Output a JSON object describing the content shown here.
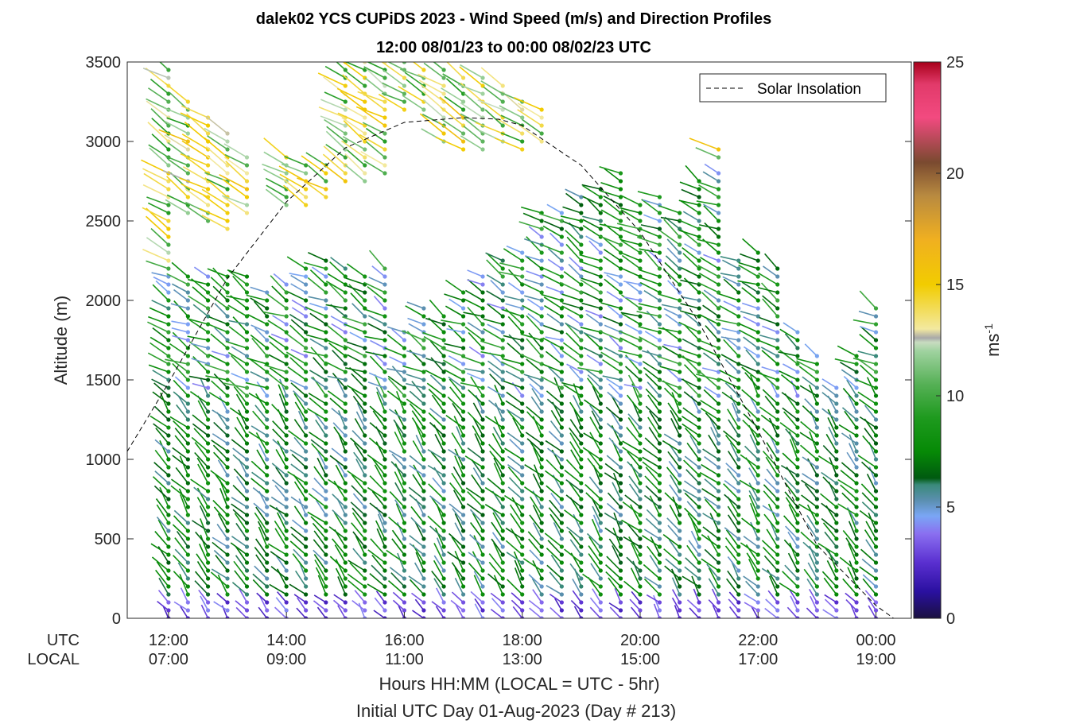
{
  "chart_data": {
    "type": "scatter",
    "title_line1": "dalek02 YCS CUPiDS 2023 - Wind Speed (m/s) and Direction Profiles",
    "title_line2": "12:00 08/01/23 to 00:00 08/02/23  UTC",
    "ylabel": "Altitude (m)",
    "xlabel": "Hours HH:MM  (LOCAL = UTC - 5hr)",
    "xlabel_sub": "Initial UTC Day 01-Aug-2023 (Day # 213)",
    "ylim": [
      0,
      3500
    ],
    "y_ticks": [
      "0",
      "500",
      "1000",
      "1500",
      "2000",
      "2500",
      "3000",
      "3500"
    ],
    "x_row_labels": {
      "utc": "UTC",
      "local": "LOCAL"
    },
    "x_ticks_utc": [
      "12:00",
      "14:00",
      "16:00",
      "18:00",
      "20:00",
      "22:00",
      "00:00"
    ],
    "x_ticks_local": [
      "07:00",
      "09:00",
      "11:00",
      "13:00",
      "15:00",
      "17:00",
      "19:00"
    ],
    "x_tick_hours": [
      12,
      14,
      16,
      18,
      20,
      22,
      24
    ],
    "xlim_hours": [
      11.3,
      24.6
    ],
    "legend": {
      "label": "Solar Insolation",
      "placement": "top-right"
    },
    "colorbar": {
      "label": "ms",
      "label_superscript": "-1",
      "range": [
        0,
        25
      ],
      "ticks": [
        "0",
        "5",
        "10",
        "15",
        "20",
        "25"
      ],
      "stops": [
        [
          0,
          "#1a1040"
        ],
        [
          1.2,
          "#2a10a0"
        ],
        [
          2.5,
          "#5a2fd0"
        ],
        [
          3.8,
          "#8a6ff0"
        ],
        [
          4.6,
          "#7aa6f5"
        ],
        [
          5.3,
          "#5b8fb0"
        ],
        [
          6.0,
          "#3a8a7a"
        ],
        [
          6.3,
          "#005a10"
        ],
        [
          7.5,
          "#068a06"
        ],
        [
          9.0,
          "#1e9a1e"
        ],
        [
          10.5,
          "#55b055"
        ],
        [
          12.0,
          "#9fd29f"
        ],
        [
          12.4,
          "#c8dcc0"
        ],
        [
          12.6,
          "#a8a8a8"
        ],
        [
          13.0,
          "#f3e9a0"
        ],
        [
          15.0,
          "#f2cc00"
        ],
        [
          17.0,
          "#f0b020"
        ],
        [
          19.0,
          "#b88a40"
        ],
        [
          20.5,
          "#7a4a30"
        ],
        [
          22.5,
          "#f24a80"
        ],
        [
          24.0,
          "#e23a6a"
        ],
        [
          25.0,
          "#a8001a"
        ]
      ]
    },
    "series": [
      {
        "name": "Solar Insolation",
        "x_hours": [
          11.3,
          12.0,
          13.0,
          14.0,
          15.0,
          16.0,
          17.0,
          17.6,
          18.0,
          19.0,
          20.0,
          21.0,
          22.0,
          23.0,
          24.0,
          24.3
        ],
        "y_alt": [
          1050,
          1480,
          2140,
          2620,
          2960,
          3120,
          3150,
          3140,
          3100,
          2850,
          2430,
          1860,
          1180,
          460,
          80,
          0
        ]
      }
    ],
    "profiles": [
      {
        "t": 12.0,
        "bottom": 0,
        "top": 2200,
        "strong_top": [
          2250,
          3450
        ]
      },
      {
        "t": 12.33,
        "bottom": 0,
        "top": 2150,
        "strong_top": [
          2550,
          3250
        ]
      },
      {
        "t": 12.67,
        "bottom": 0,
        "top": 2150,
        "strong_top": [
          2500,
          3150
        ]
      },
      {
        "t": 13.0,
        "bottom": 0,
        "top": 2150,
        "strong_top": [
          2450,
          3050
        ]
      },
      {
        "t": 13.33,
        "bottom": 0,
        "top": 2150,
        "strong_top": [
          2550,
          2900
        ]
      },
      {
        "t": 13.67,
        "bottom": 0,
        "top": 2050
      },
      {
        "t": 14.0,
        "bottom": 0,
        "top": 2100,
        "strong_top": [
          2600,
          2900
        ]
      },
      {
        "t": 14.33,
        "bottom": 0,
        "top": 2200,
        "strong_top": [
          2600,
          2850
        ]
      },
      {
        "t": 14.67,
        "bottom": 0,
        "top": 2250,
        "strong_top": [
          2650,
          2850
        ]
      },
      {
        "t": 15.0,
        "bottom": 0,
        "top": 2200,
        "strong_top": [
          2750,
          3500
        ]
      },
      {
        "t": 15.33,
        "bottom": 0,
        "top": 2150,
        "strong_top": [
          2750,
          3500
        ]
      },
      {
        "t": 15.67,
        "bottom": 0,
        "top": 2200,
        "strong_top": [
          2800,
          3500
        ]
      },
      {
        "t": 16.0,
        "bottom": 0,
        "top": 1800,
        "strong_top": [
          3200,
          3500
        ]
      },
      {
        "t": 16.33,
        "bottom": 0,
        "top": 1950,
        "strong_top": [
          3200,
          3450
        ]
      },
      {
        "t": 16.67,
        "bottom": 0,
        "top": 1900,
        "strong_top": [
          3000,
          3450
        ]
      },
      {
        "t": 17.0,
        "bottom": 0,
        "top": 2050,
        "strong_top": [
          2950,
          3400
        ]
      },
      {
        "t": 17.33,
        "bottom": 0,
        "top": 2150,
        "strong_top": [
          2950,
          3400
        ]
      },
      {
        "t": 17.67,
        "bottom": 0,
        "top": 2250,
        "strong_top": [
          3000,
          3350
        ]
      },
      {
        "t": 18.0,
        "bottom": 0,
        "top": 2300,
        "strong_top": [
          2950,
          3250
        ]
      },
      {
        "t": 18.33,
        "bottom": 0,
        "top": 2550,
        "strong_top": [
          3000,
          3200
        ]
      },
      {
        "t": 18.67,
        "bottom": 0,
        "top": 2550
      },
      {
        "t": 19.0,
        "bottom": 0,
        "top": 2650
      },
      {
        "t": 19.33,
        "bottom": 0,
        "top": 2700
      },
      {
        "t": 19.67,
        "bottom": 0,
        "top": 2800
      },
      {
        "t": 20.0,
        "bottom": 0,
        "top": 2600
      },
      {
        "t": 20.33,
        "bottom": 0,
        "top": 2650
      },
      {
        "t": 20.67,
        "bottom": 0,
        "top": 2550
      },
      {
        "t": 21.0,
        "bottom": 0,
        "top": 2750
      },
      {
        "t": 21.33,
        "bottom": 0,
        "top": 2800,
        "strong_top": [
          2900,
          2950
        ]
      },
      {
        "t": 21.67,
        "bottom": 0,
        "top": 2250
      },
      {
        "t": 22.0,
        "bottom": 0,
        "top": 2300
      },
      {
        "t": 22.33,
        "bottom": 0,
        "top": 2200
      },
      {
        "t": 22.67,
        "bottom": 0,
        "top": 1800
      },
      {
        "t": 23.0,
        "bottom": 0,
        "top": 1650
      },
      {
        "t": 23.33,
        "bottom": 0,
        "top": 1450
      },
      {
        "t": 23.67,
        "bottom": 0,
        "top": 1650
      },
      {
        "t": 24.0,
        "bottom": 0,
        "top": 1950
      }
    ]
  }
}
